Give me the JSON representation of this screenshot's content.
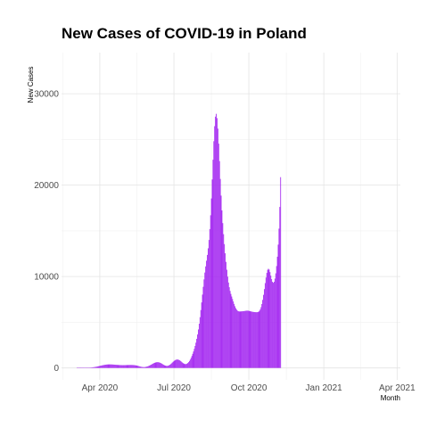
{
  "chart_data": {
    "type": "bar",
    "title": "New Cases of COVID-19 in Poland",
    "xlabel": "Month",
    "ylabel": "New Cases",
    "x_ticks": [
      {
        "date": "2020-04-01",
        "label": "Apr 2020"
      },
      {
        "date": "2020-07-01",
        "label": "Jul 2020"
      },
      {
        "date": "2020-10-01",
        "label": "Oct 2020"
      },
      {
        "date": "2021-01-01",
        "label": "Jan 2021"
      },
      {
        "date": "2021-04-01",
        "label": "Apr 2021"
      }
    ],
    "y_ticks": [
      0,
      10000,
      20000,
      30000
    ],
    "xlim": [
      "2020-02-14",
      "2021-04-05"
    ],
    "ylim": [
      -1300,
      34500
    ],
    "grid": true,
    "bar_color": "#a020f0",
    "series": [
      {
        "start_date": "2020-03-04",
        "interval": "daily",
        "values": [
          0,
          0,
          0,
          1,
          1,
          2,
          3,
          5,
          7,
          9,
          11,
          14,
          18,
          22,
          27,
          33,
          40,
          48,
          58,
          68,
          80,
          94,
          108,
          124,
          141,
          160,
          180,
          200,
          222,
          244,
          266,
          287,
          307,
          326,
          342,
          357,
          369,
          378,
          385,
          389,
          391,
          390,
          387,
          383,
          377,
          370,
          362,
          355,
          347,
          340,
          333,
          326,
          320,
          315,
          312,
          309,
          308,
          308,
          309,
          311,
          314,
          317,
          320,
          323,
          326,
          328,
          329,
          328,
          325,
          320,
          312,
          302,
          288,
          271,
          250,
          227,
          201,
          175,
          150,
          129,
          112,
          101,
          96,
          99,
          109,
          127,
          151,
          183,
          220,
          263,
          310,
          360,
          411,
          462,
          510,
          552,
          588,
          614,
          630,
          634,
          627,
          606,
          574,
          531,
          480,
          424,
          368,
          316,
          272,
          242,
          226,
          228,
          250,
          291,
          350,
          422,
          504,
          590,
          676,
          756,
          825,
          878,
          912,
          925,
          917,
          888,
          839,
          775,
          701,
          623,
          549,
          486,
          442,
          422,
          430,
          468,
          538,
          638,
          768,
          926,
          1109,
          1317,
          1548,
          1805,
          2089,
          2408,
          2770,
          3185,
          3663,
          4214,
          4844,
          5553,
          6333,
          7167,
          8027,
          8880,
          9692,
          10438,
          11112,
          11737,
          12369,
          13093,
          14005,
          15192,
          16706,
          18542,
          20620,
          22782,
          24808,
          26452,
          27497,
          27802,
          27335,
          26187,
          24543,
          22633,
          20681,
          18855,
          17241,
          15847,
          14635,
          13549,
          12546,
          11608,
          10747,
          9986,
          9347,
          8833,
          8429,
          8102,
          7817,
          7545,
          7273,
          7005,
          6756,
          6543,
          6380,
          6271,
          6210,
          6185,
          6181,
          6187,
          6195,
          6202,
          6211,
          6222,
          6237,
          6253,
          6266,
          6271,
          6266,
          6251,
          6229,
          6203,
          6178,
          6157,
          6139,
          6125,
          6114,
          6105,
          6099,
          6100,
          6116,
          6160,
          6250,
          6405,
          6648,
          6994,
          7448,
          8002,
          8630,
          9284,
          9897,
          10402,
          10735,
          10857,
          10762,
          10486,
          10105,
          9719,
          9431,
          9320,
          9432,
          9778,
          10352,
          11146,
          12173,
          13495,
          15242,
          17617,
          20875
        ]
      }
    ]
  }
}
